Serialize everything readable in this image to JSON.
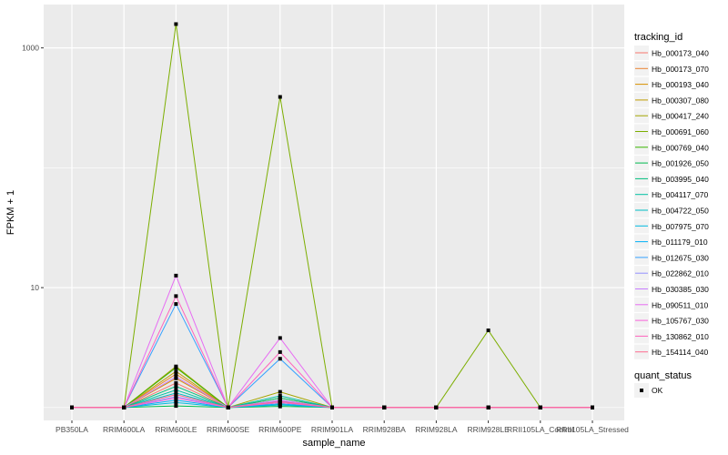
{
  "chart_data": {
    "type": "line",
    "xlabel": "sample_name",
    "ylabel": "FPKM + 1",
    "yscale": "log10",
    "ylim": [
      0.78,
      2300
    ],
    "yticks": [
      10,
      1000
    ],
    "grid": true,
    "legend_position": "right",
    "categories": [
      "PB350LA",
      "RRIM600LA",
      "RRIM600LE",
      "RRIM600SE",
      "RRIM600PE",
      "RRIM901LA",
      "RRIM928BA",
      "RRIM928LA",
      "RRIM928LE",
      "RRII105LA_Control",
      "RRII105LA_Stressed"
    ],
    "legend_title": "tracking_id",
    "series": [
      {
        "name": "Hb_000173_040",
        "color": "#F8766D",
        "values": [
          1,
          1,
          1.6,
          1,
          1.1,
          1,
          1,
          1,
          1,
          1,
          1
        ]
      },
      {
        "name": "Hb_000173_070",
        "color": "#EA8331",
        "values": [
          1,
          1,
          1.9,
          1,
          1.15,
          1,
          1,
          1,
          1,
          1,
          1
        ]
      },
      {
        "name": "Hb_000193_040",
        "color": "#D89000",
        "values": [
          1,
          1,
          1.75,
          1,
          1.1,
          1,
          1,
          1,
          1,
          1,
          1
        ]
      },
      {
        "name": "Hb_000307_080",
        "color": "#C09B00",
        "values": [
          1,
          1,
          2.0,
          1,
          1.2,
          1,
          1,
          1,
          1,
          1,
          1
        ]
      },
      {
        "name": "Hb_000417_240",
        "color": "#A3A500",
        "values": [
          1,
          1,
          2.2,
          1,
          1.35,
          1,
          1,
          1,
          1,
          1,
          1
        ]
      },
      {
        "name": "Hb_000691_060",
        "color": "#7CAE00",
        "values": [
          1,
          1,
          1580,
          1,
          390,
          1,
          1,
          1,
          4.4,
          1,
          1
        ]
      },
      {
        "name": "Hb_000769_040",
        "color": "#39B600",
        "values": [
          1,
          1,
          2.15,
          1,
          1.05,
          1,
          1,
          1,
          1,
          1,
          1
        ]
      },
      {
        "name": "Hb_001926_050",
        "color": "#00BB4E",
        "values": [
          1,
          1,
          1.03,
          1,
          1.02,
          1,
          1,
          1,
          1,
          1,
          1
        ]
      },
      {
        "name": "Hb_003995_040",
        "color": "#00BF7D",
        "values": [
          1,
          1,
          1.5,
          1,
          1.2,
          1,
          1,
          1,
          1,
          1,
          1
        ]
      },
      {
        "name": "Hb_004117_070",
        "color": "#00C1A3",
        "values": [
          1,
          1,
          1.4,
          1,
          1.25,
          1,
          1,
          1,
          1,
          1,
          1
        ]
      },
      {
        "name": "Hb_004722_050",
        "color": "#00BFC4",
        "values": [
          1,
          1,
          1.32,
          1,
          1.1,
          1,
          1,
          1,
          1,
          1,
          1
        ]
      },
      {
        "name": "Hb_007975_070",
        "color": "#00BAE0",
        "values": [
          1,
          1,
          1.1,
          1,
          1.05,
          1,
          1,
          1,
          1,
          1,
          1
        ]
      },
      {
        "name": "Hb_011179_010",
        "color": "#00B0F6",
        "values": [
          1,
          1,
          1.15,
          1,
          1.07,
          1,
          1,
          1,
          1,
          1,
          1
        ]
      },
      {
        "name": "Hb_012675_030",
        "color": "#35A2FF",
        "values": [
          1,
          1,
          7.3,
          1,
          2.55,
          1,
          1,
          1,
          1,
          1,
          1
        ]
      },
      {
        "name": "Hb_022862_010",
        "color": "#9590FF",
        "values": [
          1,
          1,
          1.23,
          1,
          1.13,
          1,
          1,
          1,
          1,
          1,
          1
        ]
      },
      {
        "name": "Hb_030385_030",
        "color": "#C77CFF",
        "values": [
          1,
          1,
          1.8,
          1,
          1.15,
          1,
          1,
          1,
          1,
          1,
          1
        ]
      },
      {
        "name": "Hb_090511_010",
        "color": "#E76BF3",
        "values": [
          1,
          1,
          12.6,
          1,
          3.8,
          1,
          1,
          1,
          1,
          1,
          1
        ]
      },
      {
        "name": "Hb_105767_030",
        "color": "#FA62DB",
        "values": [
          1,
          1,
          1.2,
          1,
          1.1,
          1,
          1,
          1,
          1,
          1,
          1
        ]
      },
      {
        "name": "Hb_130862_010",
        "color": "#FF62BC",
        "values": [
          1,
          1,
          8.5,
          1,
          2.9,
          1,
          1,
          1,
          1,
          1,
          1
        ]
      },
      {
        "name": "Hb_154114_040",
        "color": "#FF6C91",
        "values": [
          1,
          1,
          1.28,
          1,
          1.12,
          1,
          1,
          1,
          1,
          1,
          1
        ]
      }
    ],
    "point_legend_title": "quant_status",
    "point_legend": [
      "OK"
    ]
  }
}
